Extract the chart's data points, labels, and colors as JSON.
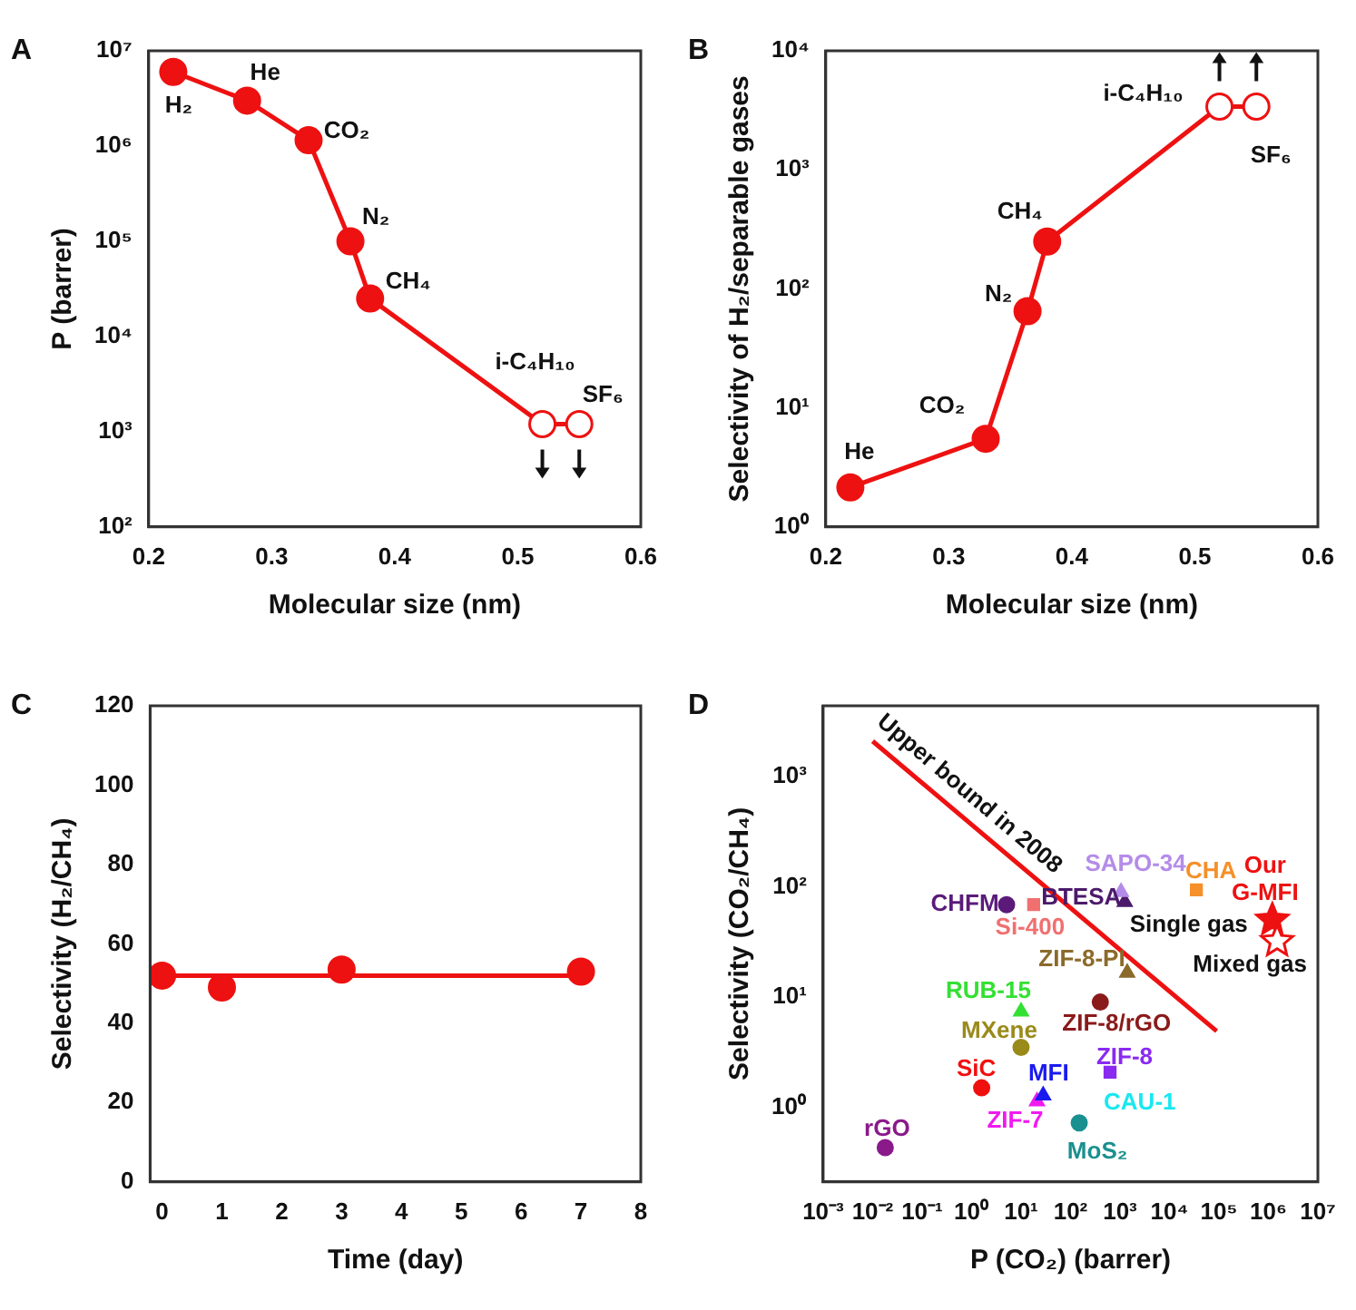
{
  "chart_data": [
    {
      "type": "line",
      "title": "A",
      "xlabel": "Molecular size (nm)",
      "ylabel": "P (barrer)",
      "log": "y",
      "marker": "circle",
      "xlim": [
        0.2,
        0.6
      ],
      "xticks": [
        0.2,
        0.3,
        0.4,
        0.5,
        0.6
      ],
      "ylim": [
        100,
        10000000
      ],
      "yticks": [
        {
          "value": 100,
          "label": "10²"
        },
        {
          "value": 1000,
          "label": "10³"
        },
        {
          "value": 10000,
          "label": "10⁴"
        },
        {
          "value": 100000,
          "label": "10⁵"
        },
        {
          "value": 1000000,
          "label": "10⁶"
        },
        {
          "value": 10000000,
          "label": "10⁷"
        }
      ],
      "series": [
        {
          "color": "#ee1111",
          "x": [
            0.22,
            0.28,
            0.33,
            0.364,
            0.38,
            0.52,
            0.55
          ],
          "values": [
            6000000,
            3000000,
            1150000,
            100000,
            25000,
            1200,
            1200
          ],
          "colors": [
            "#ee1111",
            "#ee1111",
            "#ee1111",
            "#ee1111",
            "#ee1111",
            "#ffffff",
            "#ffffff"
          ]
        }
      ],
      "annotations": [
        {
          "text": "H₂",
          "x": 0.22,
          "y": 6000000
        },
        {
          "text": "He",
          "x": 0.28,
          "y": 3000000
        },
        {
          "text": "CO₂",
          "x": 0.33,
          "y": 1150000
        },
        {
          "text": "N₂",
          "x": 0.364,
          "y": 100000
        },
        {
          "text": "CH₄",
          "x": 0.38,
          "y": 25000
        },
        {
          "text": "i-C₄H₁₀",
          "x": 0.52,
          "y": 1200
        },
        {
          "text": "SF₆",
          "x": 0.55,
          "y": 1200
        }
      ]
    },
    {
      "type": "line",
      "title": "B",
      "xlabel": "Molecular size (nm)",
      "ylabel": "Selectivity of H₂/separable gases",
      "log": "y",
      "marker": "circle",
      "xlim": [
        0.2,
        0.6
      ],
      "xticks": [
        0.2,
        0.3,
        0.4,
        0.5,
        0.6
      ],
      "ylim": [
        1,
        10000
      ],
      "yticks": [
        {
          "value": 1,
          "label": "10⁰"
        },
        {
          "value": 10,
          "label": "10¹"
        },
        {
          "value": 100,
          "label": "10²"
        },
        {
          "value": 1000,
          "label": "10³"
        },
        {
          "value": 10000,
          "label": "10⁴"
        }
      ],
      "series": [
        {
          "color": "#ee1111",
          "x": [
            0.22,
            0.33,
            0.364,
            0.38,
            0.52,
            0.55
          ],
          "values": [
            2.15,
            5.5,
            65,
            250,
            3400,
            3400
          ],
          "colors": [
            "#ee1111",
            "#ee1111",
            "#ee1111",
            "#ee1111",
            "#ffffff",
            "#ffffff"
          ]
        }
      ],
      "annotations": [
        {
          "text": "He",
          "x": 0.22,
          "y": 2.15
        },
        {
          "text": "CO₂",
          "x": 0.33,
          "y": 5.5
        },
        {
          "text": "N₂",
          "x": 0.364,
          "y": 65
        },
        {
          "text": "CH₄",
          "x": 0.38,
          "y": 250
        },
        {
          "text": "i-C₄H₁₀",
          "x": 0.52,
          "y": 3400
        },
        {
          "text": "SF₆",
          "x": 0.55,
          "y": 3400
        }
      ]
    },
    {
      "type": "scatter",
      "title": "C",
      "xlabel": "Time (day)",
      "ylabel": "Selectivity (H₂/CH₄)",
      "marker": "circle",
      "xlim": [
        -0.2,
        8
      ],
      "xticks": [
        0,
        1,
        2,
        3,
        4,
        5,
        6,
        7,
        8
      ],
      "ylim": [
        0,
        120
      ],
      "yticks": [
        0,
        20,
        40,
        60,
        80,
        100,
        120
      ],
      "series": [
        {
          "type": "line",
          "color": "#ee1111",
          "marker": "none",
          "x": [
            0,
            7
          ],
          "values": [
            52,
            52
          ]
        },
        {
          "color": "#ee1111",
          "x": [
            0,
            1,
            3,
            7
          ],
          "values": [
            52,
            49,
            53.5,
            53
          ]
        }
      ]
    },
    {
      "type": "scatter",
      "title": "D",
      "xlabel": "P (CO₂) (barrer)",
      "ylabel": "Selectivity (CO₂/CH₄)",
      "log": "xy",
      "xlim": [
        0.001,
        10000000
      ],
      "xticks": [
        {
          "value": 0.001,
          "label": "10⁻³"
        },
        {
          "value": 0.01,
          "label": "10⁻²"
        },
        {
          "value": 0.1,
          "label": "10⁻¹"
        },
        {
          "value": 1,
          "label": "10⁰"
        },
        {
          "value": 10,
          "label": "10¹"
        },
        {
          "value": 100,
          "label": "10²"
        },
        {
          "value": 1000,
          "label": "10³"
        },
        {
          "value": 10000,
          "label": "10⁴"
        },
        {
          "value": 100000,
          "label": "10⁵"
        },
        {
          "value": 1000000,
          "label": "10⁶"
        },
        {
          "value": 10000000,
          "label": "10⁷"
        }
      ],
      "ylim": [
        0.21,
        4400
      ],
      "yticks": [
        {
          "value": 1,
          "label": "10⁰"
        },
        {
          "value": 10,
          "label": "10¹"
        },
        {
          "value": 100,
          "label": "10²"
        },
        {
          "value": 1000,
          "label": "10³"
        }
      ],
      "series": [
        {
          "name": "CHFM",
          "color": "#5b1a7a",
          "marker": "circle",
          "x": [
            5.1
          ],
          "values": [
            69
          ]
        },
        {
          "name": "Si-400",
          "color": "#f07070",
          "marker": "square",
          "x": [
            18
          ],
          "values": [
            69
          ]
        },
        {
          "name": "SAPO-34",
          "color": "#b48ce8",
          "marker": "triangle",
          "x": [
            1050
          ],
          "values": [
            90
          ]
        },
        {
          "name": "BTESA",
          "color": "#4b1a6b",
          "marker": "triangle",
          "x": [
            1250
          ],
          "values": [
            73
          ]
        },
        {
          "name": "CHA",
          "color": "#f5902a",
          "marker": "square",
          "x": [
            35000
          ],
          "values": [
            94
          ]
        },
        {
          "name": "ZIF-8-PI",
          "color": "#8b6a2a",
          "marker": "triangle",
          "x": [
            1400
          ],
          "values": [
            16.6
          ]
        },
        {
          "name": "ZIF-8/rGO",
          "color": "#8b1a1a",
          "marker": "circle",
          "x": [
            400
          ],
          "values": [
            9
          ]
        },
        {
          "name": "RUB-15",
          "color": "#33e033",
          "marker": "triangle",
          "x": [
            10
          ],
          "values": [
            7.4
          ]
        },
        {
          "name": "MXene",
          "color": "#9a8a1a",
          "marker": "circle",
          "x": [
            10
          ],
          "values": [
            3.5
          ]
        },
        {
          "name": "SiC",
          "color": "#f01010",
          "marker": "circle",
          "x": [
            1.6
          ],
          "values": [
            1.5
          ]
        },
        {
          "name": "MFI",
          "color": "#1a1af0",
          "marker": "triangle",
          "x": [
            28
          ],
          "values": [
            1.28
          ]
        },
        {
          "name": "ZIF-7",
          "color": "#f01af0",
          "marker": "triangle",
          "x": [
            21
          ],
          "values": [
            1.13
          ]
        },
        {
          "name": "ZIF-8",
          "color": "#8a2af0",
          "marker": "square",
          "x": [
            630
          ],
          "values": [
            2.08
          ]
        },
        {
          "name": "MoS₂",
          "color": "#1a9090",
          "marker": "circle",
          "x": [
            150
          ],
          "values": [
            0.72
          ]
        },
        {
          "name": "rGO",
          "color": "#8a1a8a",
          "marker": "circle",
          "x": [
            0.018
          ],
          "values": [
            0.43
          ]
        },
        {
          "name": "Single gas",
          "color": "#ee1111",
          "marker": "star",
          "x": [
            1200000
          ],
          "values": [
            50
          ]
        },
        {
          "name": "Mixed gas",
          "color": "#ee1111",
          "marker": "star",
          "x": [
            1500000
          ],
          "values": [
            32
          ],
          "colors": [
            "#ffffff"
          ]
        },
        {
          "name": "Upper bound in 2008",
          "type": "line",
          "color": "#ee1111",
          "marker": "none",
          "x": [
            0.01,
            90000
          ],
          "values": [
            2100,
            4.9
          ]
        }
      ],
      "annotations": [
        {
          "text": "Our G-MFI",
          "x": 1200000,
          "y": 50
        },
        "CAU-1"
      ]
    }
  ]
}
